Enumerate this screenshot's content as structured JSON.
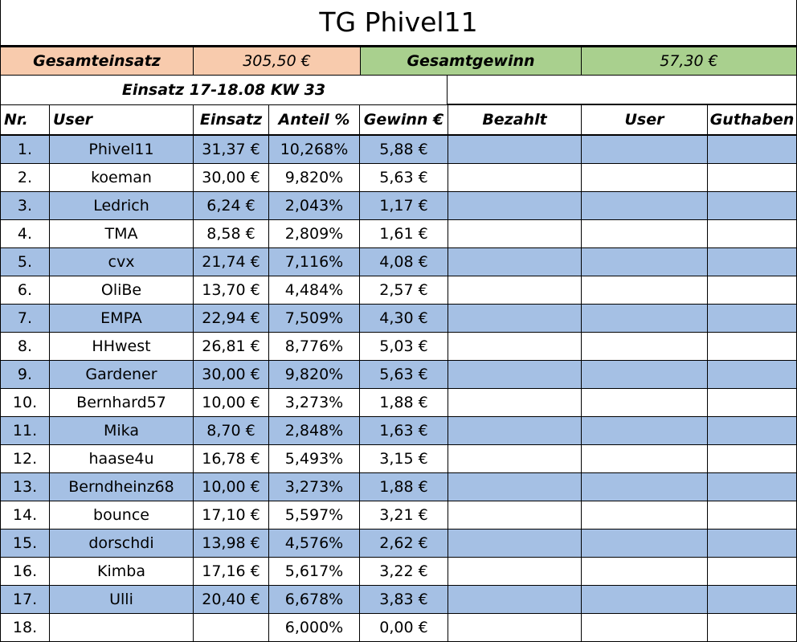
{
  "title": "TG Phivel11",
  "summary": {
    "gesamteinsatz_label": "Gesamteinsatz",
    "gesamteinsatz_value": "305,50 €",
    "gesamtgewinn_label": "Gesamtgewinn",
    "gesamtgewinn_value": "57,30 €"
  },
  "period_label": "Einsatz 17-18.08 KW 33",
  "headers": {
    "nr": "Nr.",
    "user": "User",
    "einsatz": "Einsatz",
    "anteil": "Anteil %",
    "gewinn": "Gewinn €",
    "bezahlt": "Bezahlt",
    "user2": "User",
    "guthaben": "Guthaben"
  },
  "rows": [
    {
      "nr": "1.",
      "user": "Phivel11",
      "einsatz": "31,37 €",
      "anteil": "10,268%",
      "gewinn": "5,88 €"
    },
    {
      "nr": "2.",
      "user": "koeman",
      "einsatz": "30,00 €",
      "anteil": "9,820%",
      "gewinn": "5,63 €"
    },
    {
      "nr": "3.",
      "user": "Ledrich",
      "einsatz": "6,24 €",
      "anteil": "2,043%",
      "gewinn": "1,17 €"
    },
    {
      "nr": "4.",
      "user": "TMA",
      "einsatz": "8,58 €",
      "anteil": "2,809%",
      "gewinn": "1,61 €"
    },
    {
      "nr": "5.",
      "user": "cvx",
      "einsatz": "21,74 €",
      "anteil": "7,116%",
      "gewinn": "4,08 €"
    },
    {
      "nr": "6.",
      "user": "OliBe",
      "einsatz": "13,70 €",
      "anteil": "4,484%",
      "gewinn": "2,57 €"
    },
    {
      "nr": "7.",
      "user": "EMPA",
      "einsatz": "22,94 €",
      "anteil": "7,509%",
      "gewinn": "4,30 €"
    },
    {
      "nr": "8.",
      "user": "HHwest",
      "einsatz": "26,81 €",
      "anteil": "8,776%",
      "gewinn": "5,03 €"
    },
    {
      "nr": "9.",
      "user": "Gardener",
      "einsatz": "30,00 €",
      "anteil": "9,820%",
      "gewinn": "5,63 €"
    },
    {
      "nr": "10.",
      "user": "Bernhard57",
      "einsatz": "10,00 €",
      "anteil": "3,273%",
      "gewinn": "1,88 €"
    },
    {
      "nr": "11.",
      "user": "Mika",
      "einsatz": "8,70 €",
      "anteil": "2,848%",
      "gewinn": "1,63 €"
    },
    {
      "nr": "12.",
      "user": "haase4u",
      "einsatz": "16,78 €",
      "anteil": "5,493%",
      "gewinn": "3,15 €"
    },
    {
      "nr": "13.",
      "user": "Berndheinz68",
      "einsatz": "10,00 €",
      "anteil": "3,273%",
      "gewinn": "1,88 €"
    },
    {
      "nr": "14.",
      "user": "bounce",
      "einsatz": "17,10 €",
      "anteil": "5,597%",
      "gewinn": "3,21 €"
    },
    {
      "nr": "15.",
      "user": "dorschdi",
      "einsatz": "13,98 €",
      "anteil": "4,576%",
      "gewinn": "2,62 €"
    },
    {
      "nr": "16.",
      "user": "Kimba",
      "einsatz": "17,16 €",
      "anteil": "5,617%",
      "gewinn": "3,22 €"
    },
    {
      "nr": "17.",
      "user": "Ulli",
      "einsatz": "20,40 €",
      "anteil": "6,678%",
      "gewinn": "3,83 €"
    }
  ],
  "partial_row": {
    "nr": "18.",
    "user": "",
    "einsatz": "",
    "anteil": "6,000%",
    "gewinn": "0,00 €"
  },
  "colors": {
    "orange": "#f8cbad",
    "green": "#a9d08e",
    "row_blue": "#a5c0e4"
  }
}
